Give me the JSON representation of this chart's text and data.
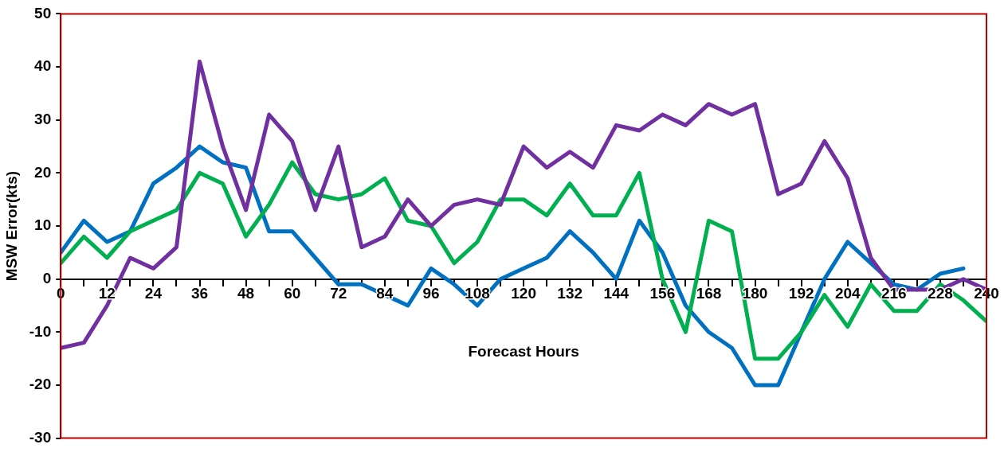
{
  "chart_data": {
    "type": "line",
    "xlabel": "Forecast Hours",
    "ylabel": "MSW Error(kts)",
    "x": [
      0,
      6,
      12,
      18,
      24,
      30,
      36,
      42,
      48,
      54,
      60,
      66,
      72,
      78,
      84,
      90,
      96,
      102,
      108,
      114,
      120,
      126,
      132,
      138,
      144,
      150,
      156,
      162,
      168,
      174,
      180,
      186,
      192,
      198,
      204,
      210,
      216,
      222,
      228,
      234,
      240
    ],
    "series": [
      {
        "color": "#7030a0",
        "values": [
          -13,
          -12,
          -5,
          4,
          2,
          6,
          41,
          25,
          13,
          31,
          26,
          13,
          25,
          6,
          8,
          15,
          10,
          14,
          15,
          14,
          25,
          21,
          24,
          21,
          29,
          28,
          31,
          29,
          33,
          31,
          33,
          16,
          18,
          26,
          19,
          4,
          -2,
          -2,
          -2,
          0,
          -2
        ]
      },
      {
        "color": "#00b050",
        "values": [
          3,
          8,
          4,
          9,
          11,
          13,
          20,
          18,
          8,
          14,
          22,
          16,
          15,
          16,
          19,
          11,
          10,
          3,
          7,
          15,
          15,
          12,
          18,
          12,
          12,
          20,
          0,
          -10,
          11,
          9,
          -15,
          -15,
          -10,
          -3,
          -9,
          -1,
          -6,
          -6,
          -1,
          -4,
          -8
        ]
      },
      {
        "color": "#0070c0",
        "values": [
          5,
          11,
          7,
          9,
          18,
          21,
          25,
          22,
          21,
          9,
          9,
          4,
          -1,
          -1,
          -3,
          -5,
          2,
          -1,
          -5,
          0,
          2,
          4,
          9,
          5,
          0,
          11,
          5,
          -5,
          -10,
          -13,
          -20,
          -20,
          -10,
          0,
          7,
          3,
          -1,
          -2,
          1,
          2,
          null
        ]
      }
    ],
    "xlim": [
      0,
      240
    ],
    "xticks": [
      0,
      {
        "value": 6,
        "label": null
      },
      12,
      {
        "value": 18,
        "label": null
      },
      24,
      {
        "value": 30,
        "label": null
      },
      36,
      {
        "value": 42,
        "label": null
      },
      48,
      {
        "value": 54,
        "label": null
      },
      60,
      {
        "value": 66,
        "label": null
      },
      72,
      {
        "value": 78,
        "label": null
      },
      84,
      {
        "value": 90,
        "label": null
      },
      96,
      {
        "value": 102,
        "label": null
      },
      108,
      {
        "value": 114,
        "label": null
      },
      120,
      {
        "value": 126,
        "label": null
      },
      132,
      {
        "value": 138,
        "label": null
      },
      144,
      {
        "value": 150,
        "label": null
      },
      156,
      {
        "value": 162,
        "label": null
      },
      168,
      {
        "value": 174,
        "label": null
      },
      180,
      {
        "value": 186,
        "label": null
      },
      192,
      {
        "value": 198,
        "label": null
      },
      204,
      {
        "value": 210,
        "label": null
      },
      216,
      {
        "value": 222,
        "label": null
      },
      228,
      {
        "value": 234,
        "label": null
      },
      240
    ],
    "ylim": [
      -30,
      50
    ],
    "yticks": [
      -30,
      -20,
      -10,
      0,
      10,
      20,
      30,
      40,
      50
    ],
    "grid": false,
    "legend": false,
    "marker": "none",
    "line_style": "solid"
  }
}
